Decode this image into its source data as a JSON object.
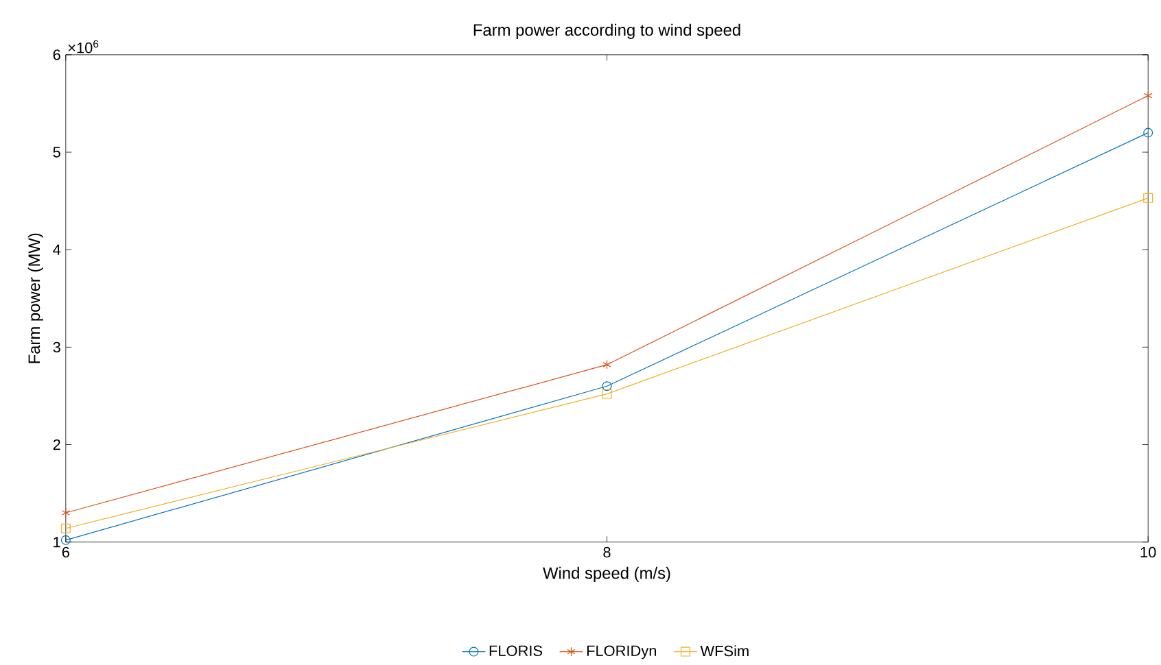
{
  "chart_data": {
    "type": "line",
    "title": "Farm power according to wind speed",
    "xlabel": "Wind speed (m/s)",
    "ylabel": "Farm power (MW)",
    "annotations": [
      "×10$^{6}$"
    ],
    "x": [
      6,
      8,
      10
    ],
    "series": [
      {
        "name": "FLORIS",
        "color": "#0072bd",
        "marker": "circle",
        "values": [
          1.02,
          2.6,
          5.2
        ]
      },
      {
        "name": "FLORIDyn",
        "color": "#d95319",
        "marker": "cross",
        "values": [
          1.3,
          2.82,
          5.58
        ]
      },
      {
        "name": "WFSim",
        "color": "#edb120",
        "marker": "square",
        "values": [
          1.14,
          2.52,
          4.53
        ]
      }
    ],
    "xlim": [
      6,
      10
    ],
    "ylim": [
      1,
      6
    ],
    "xticks": [
      6,
      8,
      10
    ],
    "yticks": [
      1,
      2,
      3,
      4,
      5,
      6
    ],
    "grid": false,
    "legend": "bottom",
    "line_style": "solid"
  }
}
